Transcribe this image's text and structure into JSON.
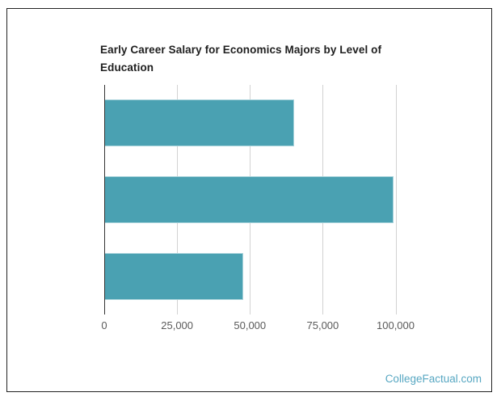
{
  "chart_data": {
    "type": "bar",
    "orientation": "horizontal",
    "title": "Early Career Salary for Economics Majors by Level of Education",
    "title_lines": [
      "Early Career Salary for Economics Majors by Level of",
      "Education"
    ],
    "categories": [
      "",
      "",
      ""
    ],
    "values": [
      65000,
      99000,
      47500
    ],
    "xlabel": "",
    "ylabel": "",
    "xlim": [
      0,
      112000
    ],
    "x_ticks": [
      0,
      25000,
      50000,
      75000,
      100000
    ],
    "x_tick_labels": [
      "0",
      "25,000",
      "50,000",
      "75,000",
      "100,000"
    ],
    "grid": "vertical",
    "legend": "none",
    "colors": {
      "bar_fill": "#4aa1b2",
      "bar_border": "#a7d2da",
      "gridline": "#d2d2d2",
      "axis_line": "#333333",
      "title_text": "#1f1f1f",
      "tick_text": "#5a5a5a"
    }
  },
  "footer": {
    "link_label": "CollegeFactual.com",
    "link_color": "#57a7c2"
  }
}
